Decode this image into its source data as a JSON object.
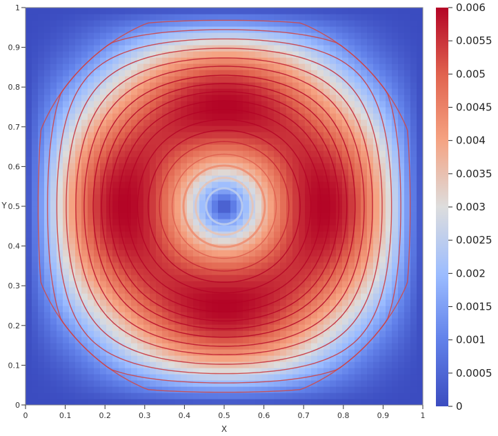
{
  "chart_data": {
    "type": "heatmap",
    "title": "",
    "xlabel": "X",
    "ylabel": "Y",
    "xlim": [
      0,
      1
    ],
    "ylim": [
      0,
      1
    ],
    "x_ticks": [
      "0",
      "0.1",
      "0.2",
      "0.3",
      "0.4",
      "0.5",
      "0.6",
      "0.7",
      "0.8",
      "0.9",
      "1"
    ],
    "y_ticks": [
      "0",
      "0.1",
      "0.2",
      "0.3",
      "0.4",
      "0.5",
      "0.6",
      "0.7",
      "0.8",
      "0.9",
      "1"
    ],
    "colorbar": {
      "range": [
        0,
        0.006
      ],
      "ticks": [
        "0",
        "0.0005",
        "0.001",
        "0.0015",
        "0.002",
        "0.0025",
        "0.003",
        "0.0035",
        "0.004",
        "0.0045",
        "0.005",
        "0.0055",
        "0.006"
      ],
      "colormap": "cool-to-warm",
      "low_color": "#3b4cc0",
      "mid_color": "#dddddd",
      "high_color": "#b40426"
    },
    "field": {
      "description_values": "magnitude peaks near 0.006 at (0.5,0.2),(0.5,0.8),(0.2,0.5),(0.8,0.5); minimum 0 at center (0.5,0.5) and along boundaries",
      "peak_points": [
        {
          "x": 0.5,
          "y": 0.21,
          "value": 0.006
        },
        {
          "x": 0.5,
          "y": 0.79,
          "value": 0.006
        },
        {
          "x": 0.21,
          "y": 0.5,
          "value": 0.006
        },
        {
          "x": 0.79,
          "y": 0.5,
          "value": 0.006
        }
      ],
      "center_value": 0.0,
      "boundary_value": 0.0
    },
    "overlay": "streamlines (concentric closed loops) colored by same scale",
    "grid": false
  }
}
